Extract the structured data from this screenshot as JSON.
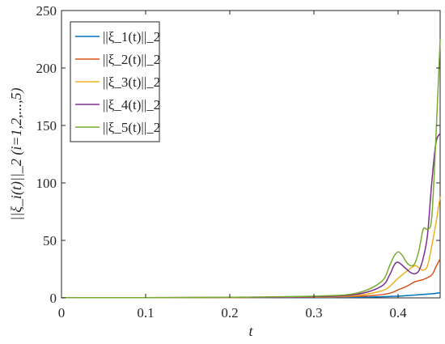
{
  "chart_data": {
    "type": "line",
    "xlabel": "t",
    "ylabel": "||ξ_i(t)||_2 (i=1,2,...,5)",
    "xlim": [
      0,
      0.45
    ],
    "ylim": [
      0,
      250
    ],
    "xticks": [
      0,
      0.1,
      0.2,
      0.3,
      0.4
    ],
    "xtick_labels": [
      "0",
      "0.1",
      "0.2",
      "0.3",
      "0.4"
    ],
    "yticks": [
      0,
      50,
      100,
      150,
      200,
      250
    ],
    "ytick_labels": [
      "0",
      "50",
      "100",
      "150",
      "200",
      "250"
    ],
    "grid": false,
    "legend_position": "top-left",
    "series": [
      {
        "name": "||ξ_1(t)||_2",
        "color": "#0072BD",
        "x": [
          0,
          0.1,
          0.2,
          0.3,
          0.35,
          0.38,
          0.4,
          0.42,
          0.44,
          0.45
        ],
        "y": [
          0.2,
          0.2,
          0.2,
          0.3,
          0.5,
          1,
          1.5,
          2.5,
          3.5,
          4.5
        ]
      },
      {
        "name": "||ξ_2(t)||_2",
        "color": "#D95319",
        "x": [
          0,
          0.1,
          0.2,
          0.3,
          0.34,
          0.37,
          0.39,
          0.4,
          0.41,
          0.42,
          0.43,
          0.44,
          0.445,
          0.45
        ],
        "y": [
          0.2,
          0.2,
          0.3,
          0.5,
          1,
          2,
          4,
          7,
          10,
          14,
          16,
          20,
          27,
          34
        ]
      },
      {
        "name": "||ξ_3(t)||_2",
        "color": "#EDB120",
        "x": [
          0,
          0.1,
          0.2,
          0.3,
          0.35,
          0.38,
          0.39,
          0.4,
          0.41,
          0.42,
          0.425,
          0.43,
          0.435,
          0.44,
          0.445,
          0.45
        ],
        "y": [
          0.2,
          0.2,
          0.3,
          0.8,
          2,
          6,
          10,
          17,
          23,
          28,
          26,
          24,
          28,
          45,
          65,
          88
        ]
      },
      {
        "name": "||ξ_4(t)||_2",
        "color": "#7E2F8E",
        "x": [
          0,
          0.1,
          0.2,
          0.3,
          0.35,
          0.38,
          0.39,
          0.395,
          0.4,
          0.41,
          0.415,
          0.42,
          0.425,
          0.43,
          0.435,
          0.44,
          0.445,
          0.45
        ],
        "y": [
          0.2,
          0.2,
          0.4,
          1,
          3,
          10,
          20,
          28,
          31,
          25,
          22,
          21,
          24,
          35,
          55,
          100,
          135,
          143
        ]
      },
      {
        "name": "||ξ_5(t)||_2",
        "color": "#77AC30",
        "x": [
          0,
          0.1,
          0.2,
          0.3,
          0.35,
          0.38,
          0.39,
          0.395,
          0.4,
          0.405,
          0.41,
          0.415,
          0.42,
          0.425,
          0.43,
          0.435,
          0.44,
          0.445,
          0.45
        ],
        "y": [
          0.2,
          0.2,
          0.5,
          1.5,
          4,
          14,
          28,
          36,
          40,
          37,
          31,
          28,
          30,
          42,
          60,
          60,
          70,
          140,
          225
        ]
      }
    ]
  }
}
